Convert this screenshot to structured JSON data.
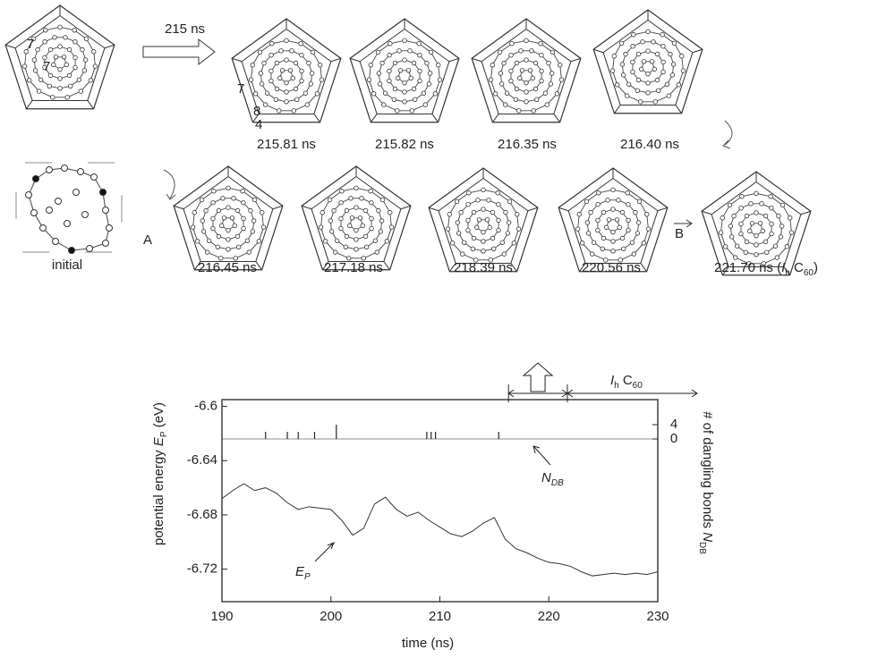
{
  "snapshots": {
    "arrow_label": "215 ns",
    "row1": [
      "215.81 ns",
      "215.82 ns",
      "216.35 ns",
      "216.40 ns"
    ],
    "row2": [
      "216.45 ns",
      "217.18 ns",
      "218.39 ns",
      "220.56 ns"
    ],
    "final": [
      "221.70 ns (",
      "I",
      "h",
      " C",
      "60",
      ")"
    ],
    "initial": "initial",
    "step_a": "A",
    "step_b": "B",
    "ring_labels": [
      "7",
      "7",
      "7",
      "8",
      "4"
    ]
  },
  "chart_data": {
    "type": "line",
    "xlabel": "time (ns)",
    "ylabel": [
      "potential energy ",
      "E",
      "P",
      " (eV)"
    ],
    "y2label": [
      "# of dangling bonds ",
      "N",
      "DB"
    ],
    "xlim": [
      190,
      230
    ],
    "xticks": [
      190,
      200,
      210,
      220,
      230
    ],
    "ylim": [
      -6.744,
      -6.595
    ],
    "yticks": [
      -6.6,
      -6.64,
      -6.68,
      -6.72
    ],
    "y2lim": [
      -45.5,
      11
    ],
    "y2ticks": [
      0,
      4
    ],
    "series": [
      {
        "name": [
          "E",
          "P"
        ],
        "color": "#333333",
        "x": [
          190,
          191,
          192,
          193,
          194,
          195,
          196,
          197,
          198,
          199,
          200,
          201,
          202,
          203,
          204,
          205,
          206,
          207,
          208,
          209,
          210,
          211,
          212,
          213,
          214,
          215,
          216,
          217,
          218,
          219,
          220,
          221,
          222,
          223,
          224,
          225,
          226,
          227,
          228,
          229,
          230
        ],
        "values": [
          -6.668,
          -6.662,
          -6.657,
          -6.662,
          -6.66,
          -6.664,
          -6.671,
          -6.676,
          -6.674,
          -6.675,
          -6.676,
          -6.684,
          -6.695,
          -6.69,
          -6.672,
          -6.667,
          -6.676,
          -6.681,
          -6.678,
          -6.684,
          -6.689,
          -6.694,
          -6.696,
          -6.692,
          -6.686,
          -6.682,
          -6.698,
          -6.705,
          -6.708,
          -6.712,
          -6.715,
          -6.716,
          -6.718,
          -6.722,
          -6.725,
          -6.724,
          -6.723,
          -6.724,
          -6.723,
          -6.724,
          -6.722
        ]
      },
      {
        "name": [
          "N",
          "DB"
        ],
        "color": "#222222",
        "type": "stem",
        "axis": "y2",
        "x": [
          194,
          196,
          197,
          198.5,
          200.5,
          208.8,
          209.2,
          209.6,
          215.4
        ],
        "values": [
          2,
          2,
          2,
          2,
          4,
          2,
          2,
          2,
          2
        ]
      }
    ],
    "spans": [
      [
        216.3,
        221.7
      ],
      [
        221.7,
        230
      ]
    ],
    "span_label": [
      "I",
      "h",
      " C",
      "60"
    ]
  }
}
